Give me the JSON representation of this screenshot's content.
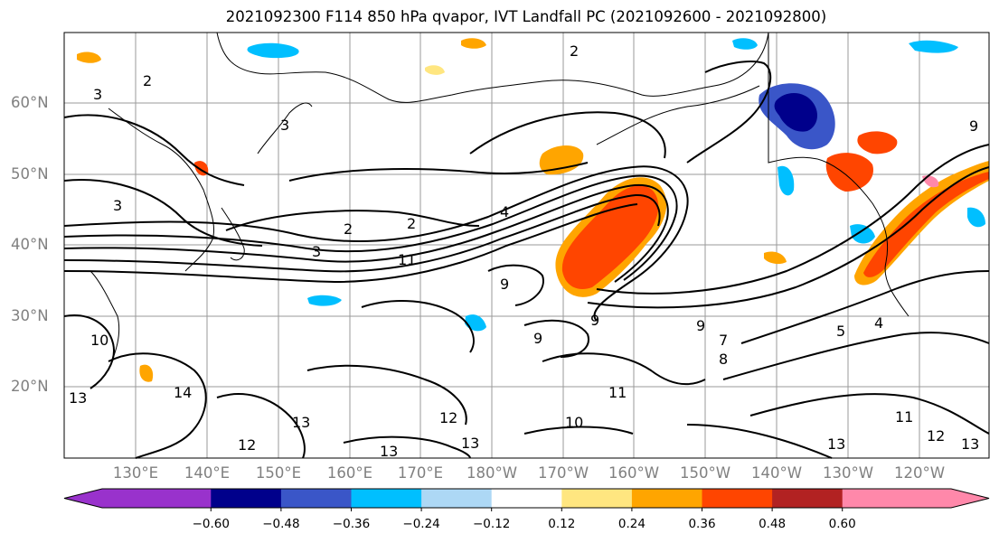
{
  "title": "2021092300 F114 850 hPa qvapor, IVT Landfall PC (2021092600 - 2021092800)",
  "lat_labels": [
    "60°N",
    "50°N",
    "40°N",
    "30°N",
    "20°N"
  ],
  "lon_labels": [
    "130°E",
    "140°E",
    "150°E",
    "160°E",
    "170°E",
    "180°W",
    "170°W",
    "160°W",
    "150°W",
    "140°W",
    "130°W",
    "120°W"
  ],
  "contour_labels": [
    "2",
    "2",
    "3",
    "3",
    "3",
    "2",
    "2",
    "3",
    "4",
    "11",
    "9",
    "9",
    "9",
    "10",
    "14",
    "13",
    "13",
    "12",
    "12",
    "13",
    "10",
    "11",
    "8",
    "7",
    "9",
    "5",
    "4",
    "11",
    "12",
    "13",
    "13",
    "13",
    "9"
  ],
  "colorbar": {
    "ticks": [
      "−0.60",
      "−0.48",
      "−0.36",
      "−0.24",
      "−0.12",
      "0.12",
      "0.24",
      "0.36",
      "0.48",
      "0.60"
    ],
    "colors": [
      "#9932cc",
      "#00008b",
      "#3a56c8",
      "#00bfff",
      "#add8f5",
      "#ffffff",
      "#ffe680",
      "#ffa500",
      "#ff4500",
      "#b22222",
      "#ff88aa"
    ]
  },
  "colors": {
    "grid": "#9a9a9a",
    "contour": "#000000",
    "axis_label": "#808080"
  }
}
